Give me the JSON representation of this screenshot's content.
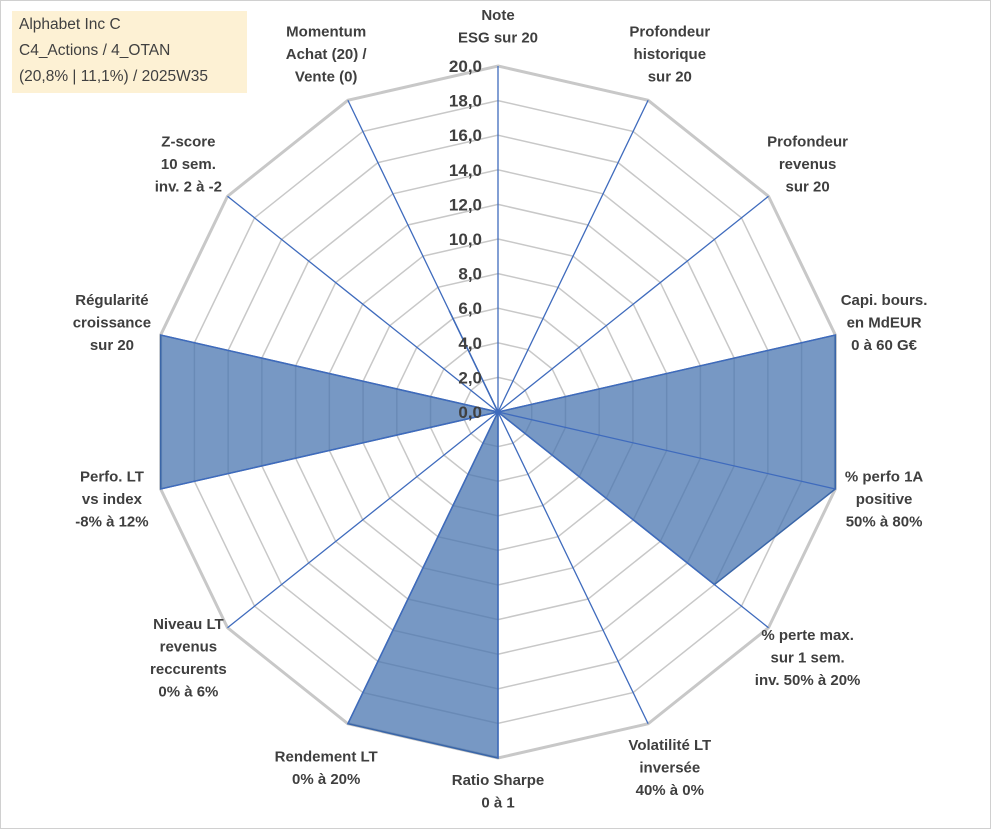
{
  "info_box": {
    "line1": "Alphabet Inc C",
    "line2": "C4_Actions / 4_OTAN",
    "line3": "(20,8% | 11,1%) / 2025W35"
  },
  "colors": {
    "series_fill": "#4a76b0",
    "series_stroke": "#3a66a8",
    "grid": "#c8c8c8",
    "axis": "#3f6bbd",
    "info_bg": "#fdf1d4"
  },
  "chart_data": {
    "type": "radar",
    "title": "",
    "rmin": 0,
    "rmax": 20,
    "tick_step": 2,
    "tick_labels": [
      "0,0",
      "2,0",
      "4,0",
      "6,0",
      "8,0",
      "10,0",
      "12,0",
      "14,0",
      "16,0",
      "18,0",
      "20,0"
    ],
    "grid": true,
    "axes": [
      [
        "Note",
        "ESG sur 20"
      ],
      [
        "Profondeur",
        "historique",
        "sur 20"
      ],
      [
        "Profondeur",
        "revenus",
        "sur 20"
      ],
      [
        "Capi. bours.",
        "en MdEUR",
        "0 à 60 G€"
      ],
      [
        "% perfo 1A",
        "positive",
        "50% à 80%"
      ],
      [
        "% perte max.",
        "sur 1 sem.",
        "inv. 50% à 20%"
      ],
      [
        "Volatilité LT",
        "inversée",
        "40% à 0%"
      ],
      [
        "Ratio Sharpe",
        "0 à 1"
      ],
      [
        "Rendement LT",
        "0% à 20%"
      ],
      [
        "Niveau LT",
        "revenus",
        "reccurents",
        "0% à 6%"
      ],
      [
        "Perfo. LT",
        "vs index",
        "-8% à 12%"
      ],
      [
        "Régularité",
        "croissance",
        "sur 20"
      ],
      [
        "Z-score",
        "10 sem.",
        "inv. 2 à -2"
      ],
      [
        "Momentum",
        "Achat (20) /",
        "Vente (0)"
      ]
    ],
    "series": [
      {
        "name": "",
        "values": [
          0,
          0,
          0,
          20,
          20,
          16,
          0,
          20,
          20,
          0,
          20,
          20,
          0,
          6.5
        ]
      }
    ]
  }
}
